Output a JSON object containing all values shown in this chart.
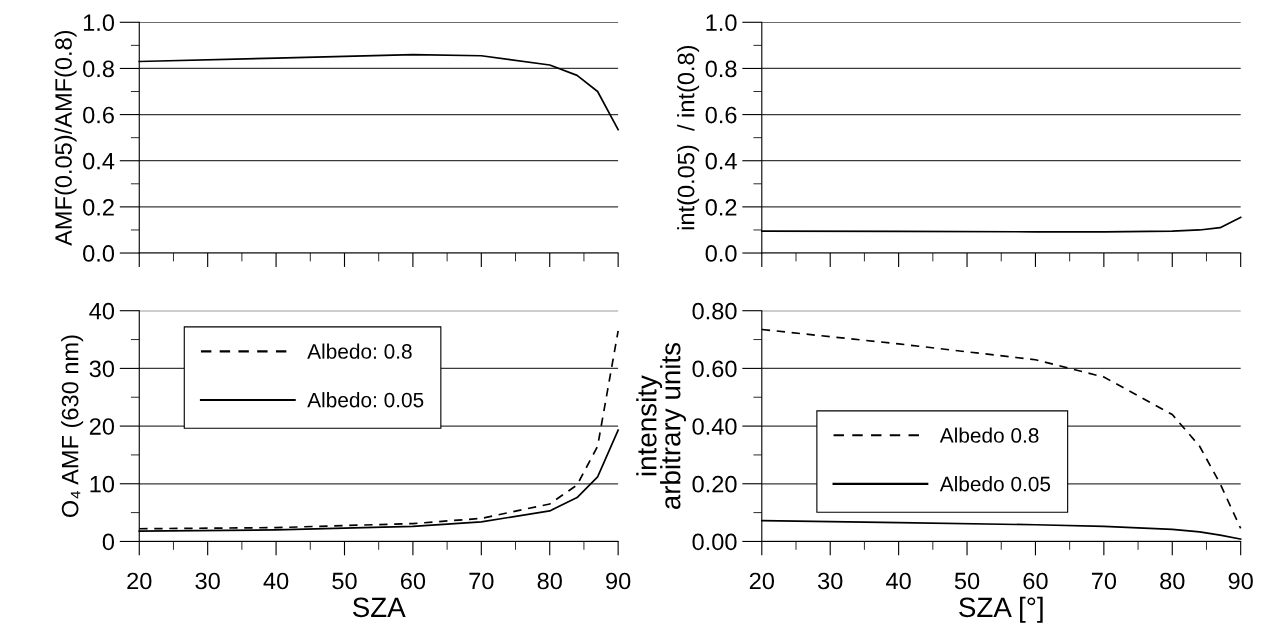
{
  "chart_data": [
    {
      "type": "line",
      "ylabel": "AMF(0.05)/AMF(0.8)",
      "xlim": [
        20,
        90
      ],
      "xticks": [
        20,
        {
          "value": 25,
          "label": null
        },
        30,
        {
          "value": 35,
          "label": null
        },
        40,
        {
          "value": 45,
          "label": null
        },
        50,
        {
          "value": 55,
          "label": null
        },
        60,
        {
          "value": 65,
          "label": null
        },
        70,
        {
          "value": 75,
          "label": null
        },
        80,
        {
          "value": 85,
          "label": null
        },
        90
      ],
      "ylim": [
        0,
        1
      ],
      "yticks": [
        {
          "value": 0,
          "label": "0.0"
        },
        {
          "value": 0.1,
          "label": null
        },
        {
          "value": 0.2,
          "label": "0.2"
        },
        {
          "value": 0.3,
          "label": null
        },
        {
          "value": 0.4,
          "label": "0.4"
        },
        {
          "value": 0.5,
          "label": null
        },
        {
          "value": 0.6,
          "label": "0.6"
        },
        {
          "value": 0.7,
          "label": null
        },
        {
          "value": 0.8,
          "label": "0.8"
        },
        {
          "value": 0.9,
          "label": null
        },
        {
          "value": 1,
          "label": "1.0"
        }
      ],
      "grid": "y",
      "tick_labels": "y",
      "legend": false,
      "x": [
        20,
        40,
        60,
        70,
        80,
        84,
        87,
        90
      ],
      "series": [
        {
          "color": "#000000",
          "line_style": "solid",
          "values": [
            0.83,
            0.845,
            0.86,
            0.855,
            0.815,
            0.77,
            0.7,
            0.535
          ]
        }
      ]
    },
    {
      "type": "line",
      "ylabel": "int(0.05)  / int(0.8)",
      "xlim": [
        20,
        90
      ],
      "xticks": [
        20,
        {
          "value": 25,
          "label": null
        },
        30,
        {
          "value": 35,
          "label": null
        },
        40,
        {
          "value": 45,
          "label": null
        },
        50,
        {
          "value": 55,
          "label": null
        },
        60,
        {
          "value": 65,
          "label": null
        },
        70,
        {
          "value": 75,
          "label": null
        },
        80,
        {
          "value": 85,
          "label": null
        },
        90
      ],
      "ylim": [
        0,
        1
      ],
      "yticks": [
        {
          "value": 0,
          "label": "0.0"
        },
        {
          "value": 0.1,
          "label": null
        },
        {
          "value": 0.2,
          "label": "0.2"
        },
        {
          "value": 0.3,
          "label": null
        },
        {
          "value": 0.4,
          "label": "0.4"
        },
        {
          "value": 0.5,
          "label": null
        },
        {
          "value": 0.6,
          "label": "0.6"
        },
        {
          "value": 0.7,
          "label": null
        },
        {
          "value": 0.8,
          "label": "0.8"
        },
        {
          "value": 0.9,
          "label": null
        },
        {
          "value": 1,
          "label": "1.0"
        }
      ],
      "grid": "y",
      "tick_labels": "y",
      "legend": false,
      "x": [
        20,
        40,
        60,
        70,
        80,
        84,
        87,
        90
      ],
      "series": [
        {
          "color": "#000000",
          "line_style": "solid",
          "values": [
            0.095,
            0.094,
            0.092,
            0.092,
            0.095,
            0.1,
            0.11,
            0.155
          ]
        }
      ]
    },
    {
      "type": "line",
      "xlabel": "SZA",
      "ylabel": "O₄ AMF (630 nm)",
      "xlim": [
        20,
        90
      ],
      "xticks": [
        20,
        {
          "value": 25,
          "label": null
        },
        30,
        {
          "value": 35,
          "label": null
        },
        40,
        {
          "value": 45,
          "label": null
        },
        50,
        {
          "value": 55,
          "label": null
        },
        60,
        {
          "value": 65,
          "label": null
        },
        70,
        {
          "value": 75,
          "label": null
        },
        80,
        {
          "value": 85,
          "label": null
        },
        90
      ],
      "ylim": [
        0,
        40
      ],
      "yticks": [
        0,
        {
          "value": 5,
          "label": null
        },
        10,
        {
          "value": 15,
          "label": null
        },
        20,
        {
          "value": 25,
          "label": null
        },
        30,
        {
          "value": 35,
          "label": null
        },
        40
      ],
      "grid": "y",
      "legend": "top left",
      "x": [
        20,
        40,
        60,
        70,
        80,
        84,
        87,
        90
      ],
      "series": [
        {
          "name": "Albedo: 0.8",
          "color": "#000000",
          "line_style": "dashed",
          "values": [
            2.2,
            2.4,
            3.1,
            4.0,
            6.5,
            9.8,
            16.5,
            36.5
          ]
        },
        {
          "name": "Albedo: 0.05",
          "color": "#000000",
          "line_style": "solid",
          "values": [
            1.8,
            2.0,
            2.6,
            3.4,
            5.3,
            7.6,
            11.2,
            19.3
          ]
        }
      ]
    },
    {
      "type": "line",
      "xlabel": "SZA [°]",
      "ylabel": "intensity\narbitrary units",
      "xlim": [
        20,
        90
      ],
      "xticks": [
        20,
        {
          "value": 25,
          "label": null
        },
        30,
        {
          "value": 35,
          "label": null
        },
        40,
        {
          "value": 45,
          "label": null
        },
        50,
        {
          "value": 55,
          "label": null
        },
        60,
        {
          "value": 65,
          "label": null
        },
        70,
        {
          "value": 75,
          "label": null
        },
        80,
        {
          "value": 85,
          "label": null
        },
        90
      ],
      "ylim": [
        0,
        0.8
      ],
      "yticks": [
        {
          "value": 0,
          "label": "0.00"
        },
        {
          "value": 0.1,
          "label": null
        },
        {
          "value": 0.2,
          "label": "0.20"
        },
        {
          "value": 0.3,
          "label": null
        },
        {
          "value": 0.4,
          "label": "0.40"
        },
        {
          "value": 0.5,
          "label": null
        },
        {
          "value": 0.6,
          "label": "0.60"
        },
        {
          "value": 0.7,
          "label": null
        },
        {
          "value": 0.8,
          "label": "0.80"
        }
      ],
      "grid": "y",
      "legend": "center left",
      "x": [
        20,
        40,
        60,
        70,
        80,
        84,
        87,
        90
      ],
      "series": [
        {
          "name": "Albedo 0.8",
          "color": "#000000",
          "line_style": "dashed",
          "values": [
            0.735,
            0.685,
            0.63,
            0.57,
            0.44,
            0.33,
            0.2,
            0.045
          ]
        },
        {
          "name": "Albedo 0.05",
          "color": "#000000",
          "line_style": "solid",
          "values": [
            0.072,
            0.065,
            0.058,
            0.052,
            0.042,
            0.033,
            0.022,
            0.008
          ]
        }
      ]
    }
  ]
}
